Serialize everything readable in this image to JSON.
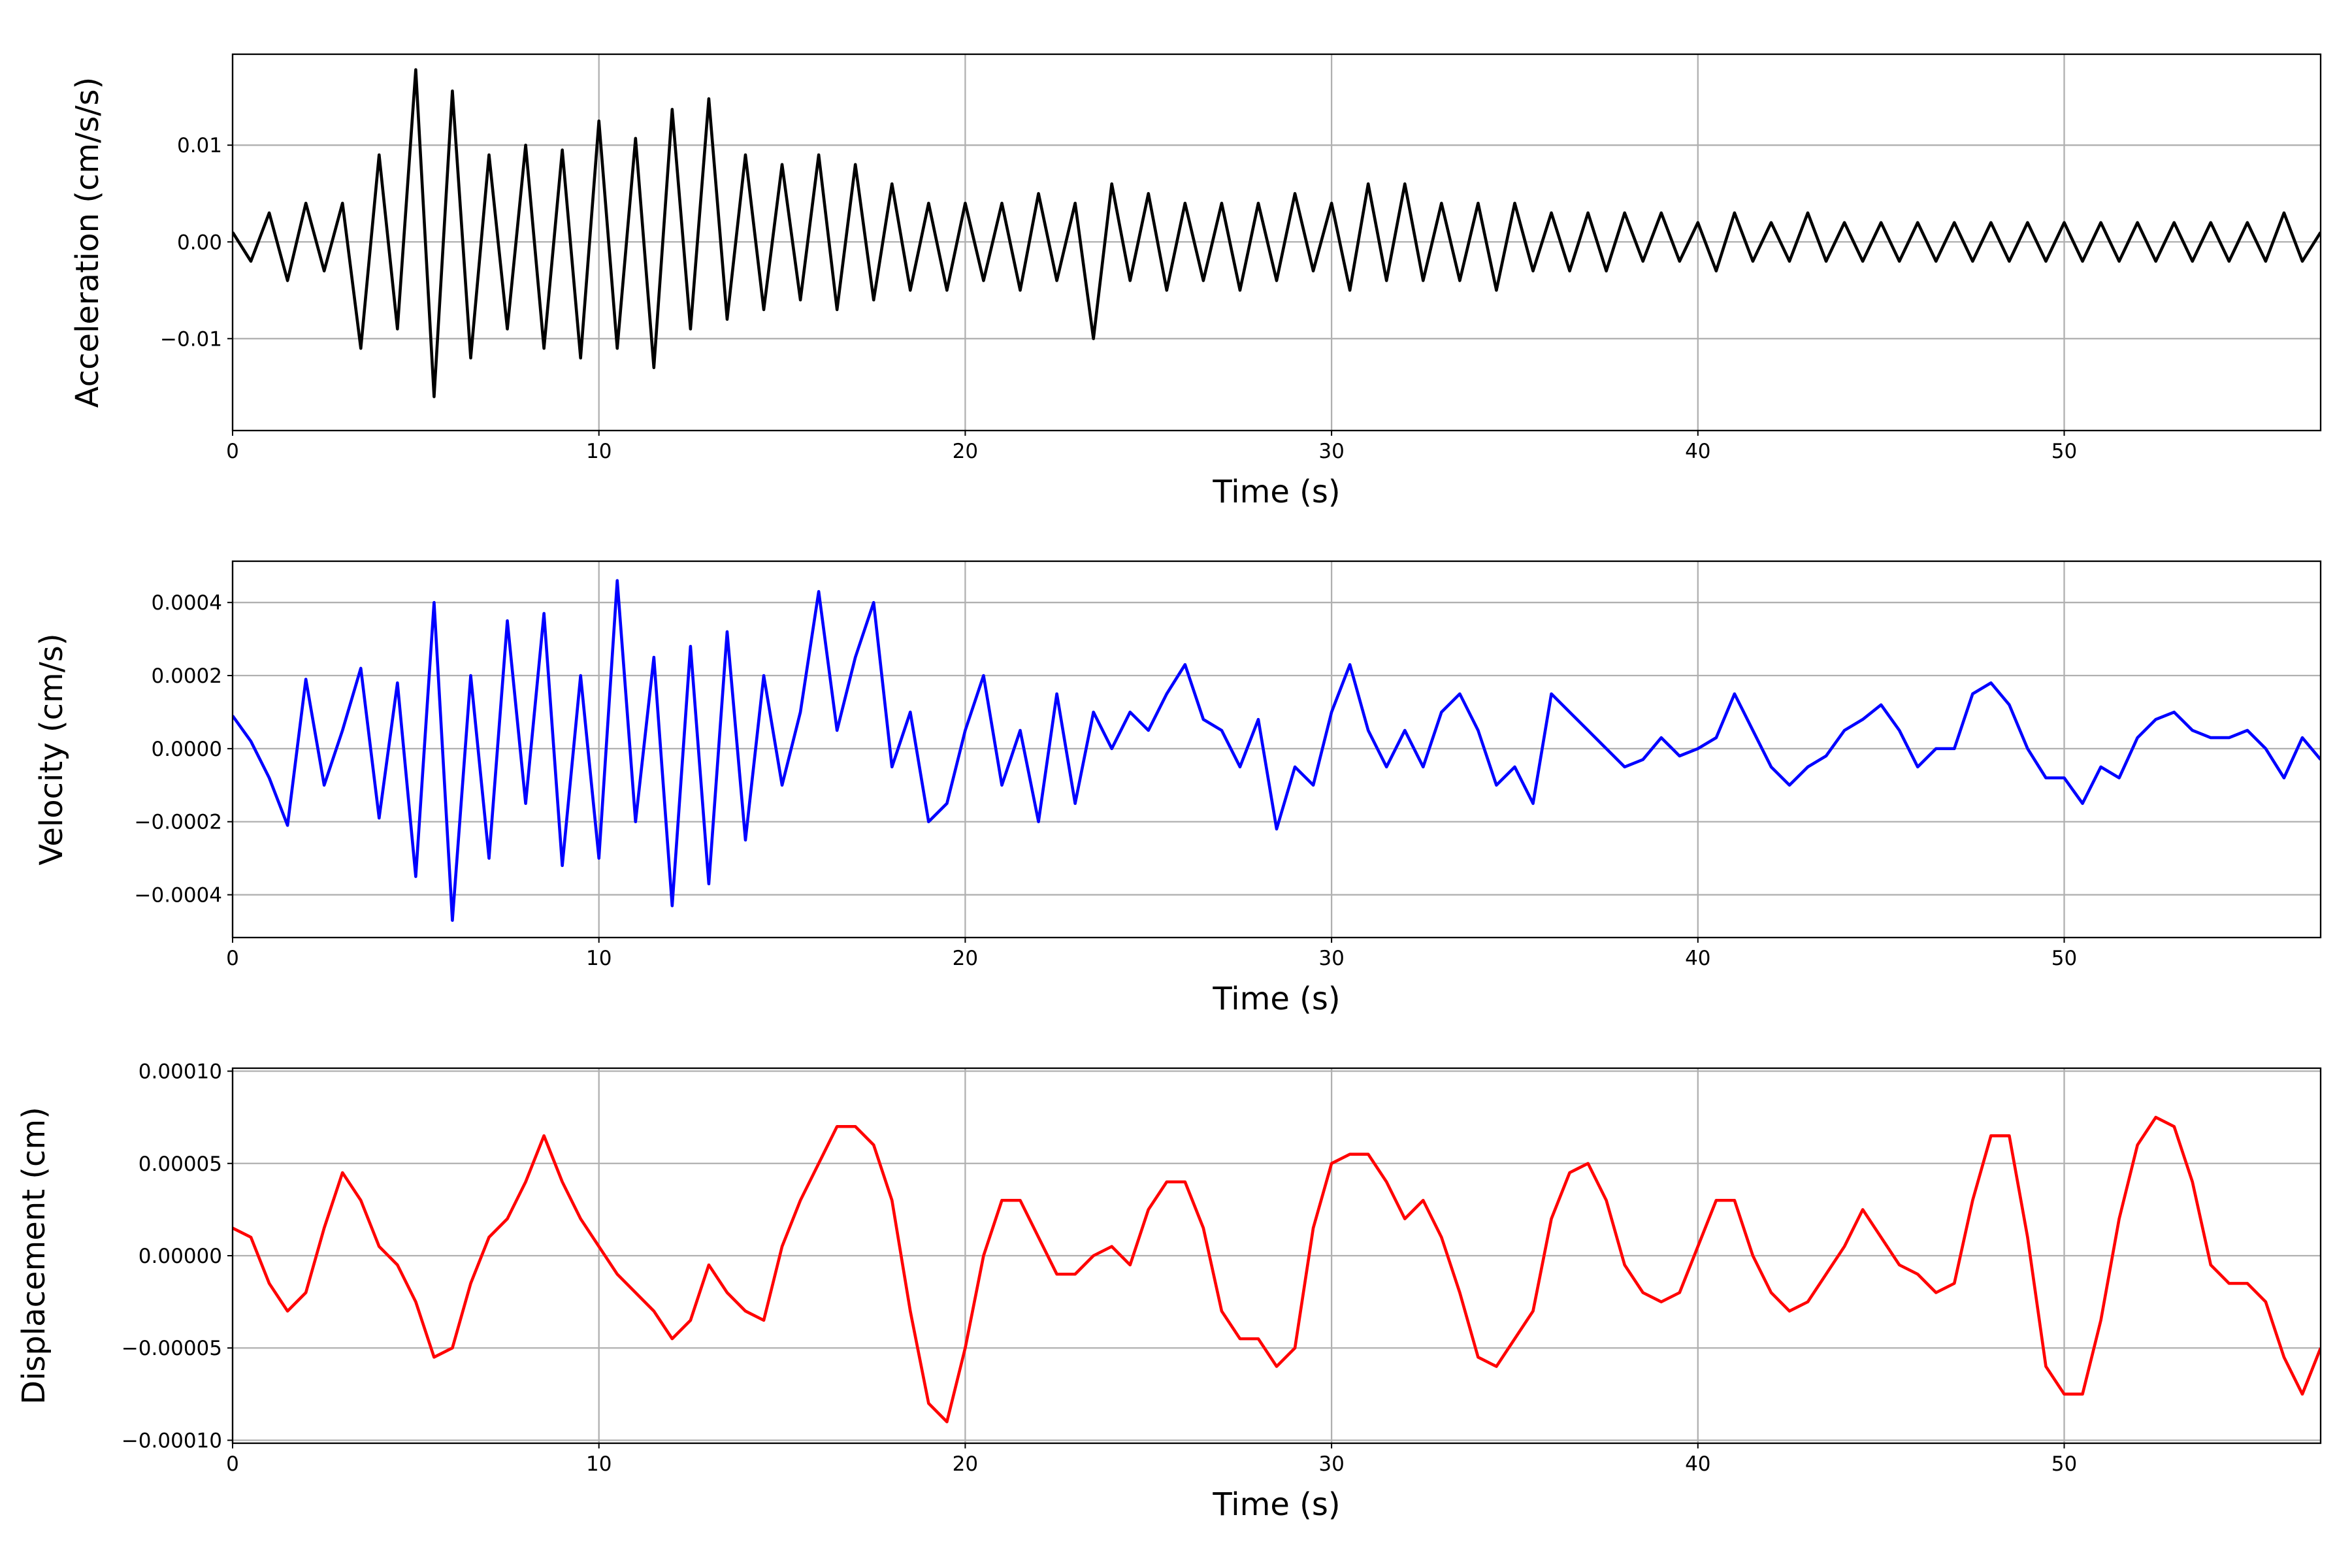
{
  "chart_data": [
    {
      "type": "line",
      "color": "#000000",
      "ylabel": "Acceleration (cm/s/s)",
      "xlabel": "Time (s)",
      "xlim": [
        0,
        57
      ],
      "xticks": [
        0,
        10,
        20,
        30,
        40,
        50
      ],
      "ylim": [
        -0.0195,
        0.0194
      ],
      "yticks": [
        {
          "value": -0.01,
          "label": "−0.01"
        },
        {
          "value": 0,
          "label": "0.00"
        },
        0.01
      ],
      "grid": true,
      "x": [
        0,
        0.5,
        1,
        1.5,
        2,
        2.5,
        3,
        3.5,
        4,
        4.5,
        5,
        5.5,
        6,
        6.5,
        7,
        7.5,
        8,
        8.5,
        9,
        9.5,
        10,
        10.5,
        11,
        11.5,
        12,
        12.5,
        13,
        13.5,
        14,
        14.5,
        15,
        15.5,
        16,
        16.5,
        17,
        17.5,
        18,
        18.5,
        19,
        19.5,
        20,
        20.5,
        21,
        21.5,
        22,
        22.5,
        23,
        23.5,
        24,
        24.5,
        25,
        25.5,
        26,
        26.5,
        27,
        27.5,
        28,
        28.5,
        29,
        29.5,
        30,
        30.5,
        31,
        31.5,
        32,
        32.5,
        33,
        33.5,
        34,
        34.5,
        35,
        35.5,
        36,
        36.5,
        37,
        37.5,
        38,
        38.5,
        39,
        39.5,
        40,
        40.5,
        41,
        41.5,
        42,
        42.5,
        43,
        43.5,
        44,
        44.5,
        45,
        45.5,
        46,
        46.5,
        47,
        47.5,
        48,
        48.5,
        49,
        49.5,
        50,
        50.5,
        51,
        51.5,
        52,
        52.5,
        53,
        53.5,
        54,
        54.5,
        55,
        55.5,
        56,
        56.5,
        57
      ],
      "values": [
        0.001,
        -0.002,
        0.003,
        -0.004,
        0.004,
        -0.003,
        0.004,
        -0.011,
        0.009,
        -0.009,
        0.0178,
        -0.016,
        0.0156,
        -0.012,
        0.009,
        -0.009,
        0.01,
        -0.011,
        0.0095,
        -0.012,
        0.0125,
        -0.011,
        0.0107,
        -0.013,
        0.0137,
        -0.009,
        0.0148,
        -0.008,
        0.009,
        -0.007,
        0.008,
        -0.006,
        0.009,
        -0.007,
        0.008,
        -0.006,
        0.006,
        -0.005,
        0.004,
        -0.005,
        0.004,
        -0.004,
        0.004,
        -0.005,
        0.005,
        -0.004,
        0.004,
        -0.01,
        0.006,
        -0.004,
        0.005,
        -0.005,
        0.004,
        -0.004,
        0.004,
        -0.005,
        0.004,
        -0.004,
        0.005,
        -0.003,
        0.004,
        -0.005,
        0.006,
        -0.004,
        0.006,
        -0.004,
        0.004,
        -0.004,
        0.004,
        -0.005,
        0.004,
        -0.003,
        0.003,
        -0.003,
        0.003,
        -0.003,
        0.003,
        -0.002,
        0.003,
        -0.002,
        0.002,
        -0.003,
        0.003,
        -0.002,
        0.002,
        -0.002,
        0.003,
        -0.002,
        0.002,
        -0.002,
        0.002,
        -0.002,
        0.002,
        -0.002,
        0.002,
        -0.002,
        0.002,
        -0.002,
        0.002,
        -0.002,
        0.002,
        -0.002,
        0.002,
        -0.002,
        0.002,
        -0.002,
        0.002,
        -0.002,
        0.002,
        -0.002,
        0.002,
        -0.002,
        0.003,
        -0.002,
        0.001
      ]
    },
    {
      "type": "line",
      "color": "#0000ff",
      "ylabel": "Velocity (cm/s)",
      "xlabel": "Time (s)",
      "xlim": [
        0,
        57
      ],
      "xticks": [
        0,
        10,
        20,
        30,
        40,
        50
      ],
      "ylim": [
        -0.000517,
        0.000513
      ],
      "yticks": [
        {
          "value": -0.0004,
          "label": "−0.0004"
        },
        {
          "value": -0.0002,
          "label": "−0.0002"
        },
        {
          "value": 0,
          "label": "0.0000"
        },
        0.0002,
        0.0004
      ],
      "grid": true,
      "x": [
        0,
        0.5,
        1,
        1.5,
        2,
        2.5,
        3,
        3.5,
        4,
        4.5,
        5,
        5.5,
        6,
        6.5,
        7,
        7.5,
        8,
        8.5,
        9,
        9.5,
        10,
        10.5,
        11,
        11.5,
        12,
        12.5,
        13,
        13.5,
        14,
        14.5,
        15,
        15.5,
        16,
        16.5,
        17,
        17.5,
        18,
        18.5,
        19,
        19.5,
        20,
        20.5,
        21,
        21.5,
        22,
        22.5,
        23,
        23.5,
        24,
        24.5,
        25,
        25.5,
        26,
        26.5,
        27,
        27.5,
        28,
        28.5,
        29,
        29.5,
        30,
        30.5,
        31,
        31.5,
        32,
        32.5,
        33,
        33.5,
        34,
        34.5,
        35,
        35.5,
        36,
        36.5,
        37,
        37.5,
        38,
        38.5,
        39,
        39.5,
        40,
        40.5,
        41,
        41.5,
        42,
        42.5,
        43,
        43.5,
        44,
        44.5,
        45,
        45.5,
        46,
        46.5,
        47,
        47.5,
        48,
        48.5,
        49,
        49.5,
        50,
        50.5,
        51,
        51.5,
        52,
        52.5,
        53,
        53.5,
        54,
        54.5,
        55,
        55.5,
        56,
        56.5,
        57
      ],
      "values": [
        9e-05,
        2e-05,
        -8e-05,
        -0.00021,
        0.00019,
        -0.0001,
        5e-05,
        0.00022,
        -0.00019,
        0.00018,
        -0.00035,
        0.0004,
        -0.00047,
        0.0002,
        -0.0003,
        0.00035,
        -0.00015,
        0.00037,
        -0.00032,
        0.0002,
        -0.0003,
        0.00046,
        -0.0002,
        0.00025,
        -0.00043,
        0.00028,
        -0.00037,
        0.00032,
        -0.00025,
        0.0002,
        -0.0001,
        0.0001,
        0.00043,
        5e-05,
        0.00025,
        0.0004,
        -5e-05,
        0.0001,
        -0.0002,
        -0.00015,
        5e-05,
        0.0002,
        -0.0001,
        5e-05,
        -0.0002,
        0.00015,
        -0.00015,
        0.0001,
        0,
        0.0001,
        5e-05,
        0.00015,
        0.00023,
        8e-05,
        5e-05,
        -5e-05,
        8e-05,
        -0.00022,
        -5e-05,
        -0.0001,
        0.0001,
        0.00023,
        5e-05,
        -5e-05,
        5e-05,
        -5e-05,
        0.0001,
        0.00015,
        5e-05,
        -0.0001,
        -5e-05,
        -0.00015,
        0.00015,
        0.0001,
        5e-05,
        0,
        -5e-05,
        -3e-05,
        3e-05,
        -2e-05,
        0,
        3e-05,
        0.00015,
        5e-05,
        -5e-05,
        -0.0001,
        -5e-05,
        -2e-05,
        5e-05,
        8e-05,
        0.00012,
        5e-05,
        -5e-05,
        0,
        0,
        0.00015,
        0.00018,
        0.00012,
        0,
        -8e-05,
        -8e-05,
        -0.00015,
        -5e-05,
        -8e-05,
        3e-05,
        8e-05,
        0.0001,
        5e-05,
        3e-05,
        3e-05,
        5e-05,
        0,
        -8e-05,
        3e-05,
        -3e-05
      ]
    },
    {
      "type": "line",
      "color": "#ff0000",
      "ylabel": "Displacement (cm)",
      "xlabel": "Time (s)",
      "xlim": [
        0,
        57
      ],
      "xticks": [
        0,
        10,
        20,
        30,
        40,
        50
      ],
      "ylim": [
        -0.0001016,
        0.0001016
      ],
      "yticks": [
        {
          "value": -0.0001,
          "label": "−0.00010"
        },
        {
          "value": -5e-05,
          "label": "−0.00005"
        },
        {
          "value": 0,
          "label": "0.00000"
        },
        {
          "value": 5e-05,
          "label": "0.00005"
        },
        {
          "value": 0.0001,
          "label": "0.00010"
        }
      ],
      "grid": true,
      "x": [
        0,
        0.5,
        1,
        1.5,
        2,
        2.5,
        3,
        3.5,
        4,
        4.5,
        5,
        5.5,
        6,
        6.5,
        7,
        7.5,
        8,
        8.5,
        9,
        9.5,
        10,
        10.5,
        11,
        11.5,
        12,
        12.5,
        13,
        13.5,
        14,
        14.5,
        15,
        15.5,
        16,
        16.5,
        17,
        17.5,
        18,
        18.5,
        19,
        19.5,
        20,
        20.5,
        21,
        21.5,
        22,
        22.5,
        23,
        23.5,
        24,
        24.5,
        25,
        25.5,
        26,
        26.5,
        27,
        27.5,
        28,
        28.5,
        29,
        29.5,
        30,
        30.5,
        31,
        31.5,
        32,
        32.5,
        33,
        33.5,
        34,
        34.5,
        35,
        35.5,
        36,
        36.5,
        37,
        37.5,
        38,
        38.5,
        39,
        39.5,
        40,
        40.5,
        41,
        41.5,
        42,
        42.5,
        43,
        43.5,
        44,
        44.5,
        45,
        45.5,
        46,
        46.5,
        47,
        47.5,
        48,
        48.5,
        49,
        49.5,
        50,
        50.5,
        51,
        51.5,
        52,
        52.5,
        53,
        53.5,
        54,
        54.5,
        55,
        55.5,
        56,
        56.5,
        57
      ],
      "values": [
        1.5e-05,
        1e-05,
        -1.5e-05,
        -3e-05,
        -2e-05,
        1.5e-05,
        4.5e-05,
        3e-05,
        5e-06,
        -5e-06,
        -2.5e-05,
        -5.5e-05,
        -5e-05,
        -1.5e-05,
        1e-05,
        2e-05,
        4e-05,
        6.5e-05,
        4e-05,
        2e-05,
        5e-06,
        -1e-05,
        -2e-05,
        -3e-05,
        -4.5e-05,
        -3.5e-05,
        -5e-06,
        -2e-05,
        -3e-05,
        -3.5e-05,
        5e-06,
        3e-05,
        5e-05,
        7e-05,
        7e-05,
        6e-05,
        3e-05,
        -3e-05,
        -8e-05,
        -9e-05,
        -5e-05,
        0,
        3e-05,
        3e-05,
        1e-05,
        -1e-05,
        -1e-05,
        0,
        5e-06,
        -5e-06,
        2.5e-05,
        4e-05,
        4e-05,
        1.5e-05,
        -3e-05,
        -4.5e-05,
        -4.5e-05,
        -6e-05,
        -5e-05,
        1.5e-05,
        5e-05,
        5.5e-05,
        5.5e-05,
        4e-05,
        2e-05,
        3e-05,
        1e-05,
        -2e-05,
        -5.5e-05,
        -6e-05,
        -4.5e-05,
        -3e-05,
        2e-05,
        4.5e-05,
        5e-05,
        3e-05,
        -5e-06,
        -2e-05,
        -2.5e-05,
        -2e-05,
        5e-06,
        3e-05,
        3e-05,
        0,
        -2e-05,
        -3e-05,
        -2.5e-05,
        -1e-05,
        5e-06,
        2.5e-05,
        1e-05,
        -5e-06,
        -1e-05,
        -2e-05,
        -1.5e-05,
        3e-05,
        6.5e-05,
        6.5e-05,
        1e-05,
        -6e-05,
        -7.5e-05,
        -7.5e-05,
        -3.5e-05,
        2e-05,
        6e-05,
        7.5e-05,
        7e-05,
        4e-05,
        -5e-06,
        -1.5e-05,
        -1.5e-05,
        -2.5e-05,
        -5.5e-05,
        -7.5e-05,
        -5e-05
      ]
    }
  ]
}
